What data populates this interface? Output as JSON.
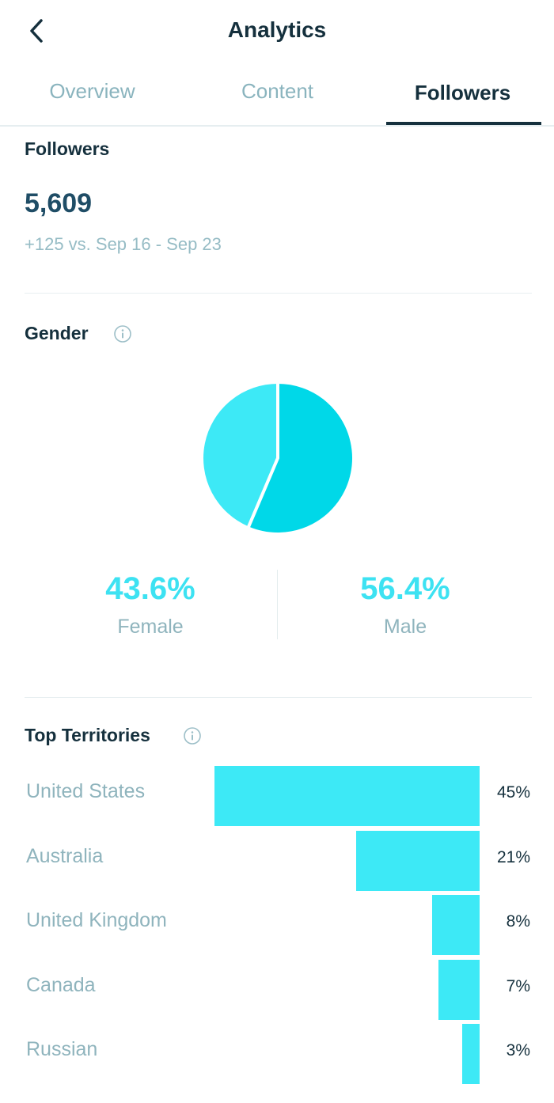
{
  "header": {
    "title": "Analytics",
    "back_icon": "chevron-left-icon"
  },
  "tabs": [
    {
      "label": "Overview",
      "active": false
    },
    {
      "label": "Content",
      "active": false
    },
    {
      "label": "Followers",
      "active": true
    }
  ],
  "followers": {
    "title": "Followers",
    "count": "5,609",
    "comparison": "+125 vs. Sep 16 - Sep 23"
  },
  "gender": {
    "title": "Gender",
    "info_icon": "info-icon",
    "female": {
      "value": "43.6%",
      "label": "Female",
      "fraction": 0.436,
      "color": "#3de9f6"
    },
    "male": {
      "value": "56.4%",
      "label": "Male",
      "fraction": 0.564,
      "color": "#00d8e8"
    }
  },
  "territories": {
    "title": "Top Territories",
    "info_icon": "info-icon",
    "items": [
      {
        "name": "United States",
        "pct": "45%",
        "value": 45
      },
      {
        "name": "Australia",
        "pct": "21%",
        "value": 21
      },
      {
        "name": "United Kingdom",
        "pct": "8%",
        "value": 8
      },
      {
        "name": "Canada",
        "pct": "7%",
        "value": 7
      },
      {
        "name": "Russian",
        "pct": "3%",
        "value": 3
      }
    ]
  }
}
